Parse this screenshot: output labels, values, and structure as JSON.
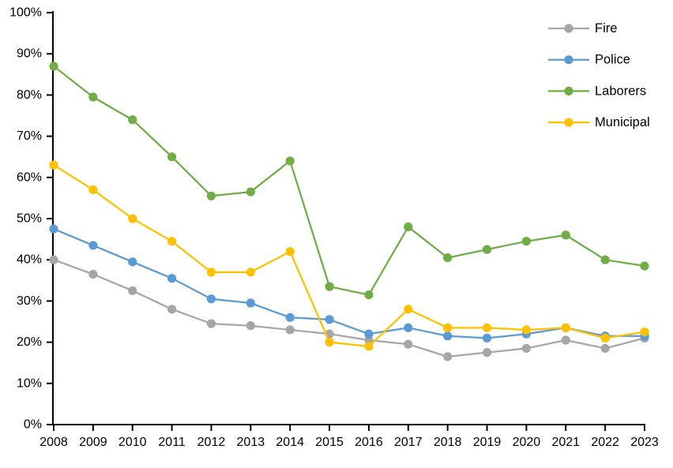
{
  "chart_data": {
    "type": "line",
    "title": "",
    "xlabel": "",
    "ylabel": "",
    "x": [
      2008,
      2009,
      2010,
      2011,
      2012,
      2013,
      2014,
      2015,
      2016,
      2017,
      2018,
      2019,
      2020,
      2021,
      2022,
      2023
    ],
    "series": [
      {
        "name": "Fire",
        "color": "#A6A6A6",
        "values": [
          40,
          36.5,
          32.5,
          28,
          24.5,
          24,
          23,
          22,
          20.5,
          19.5,
          16.5,
          17.5,
          18.5,
          20.5,
          18.5,
          21
        ]
      },
      {
        "name": "Police",
        "color": "#5B9BD5",
        "values": [
          47.5,
          43.5,
          39.5,
          35.5,
          30.5,
          29.5,
          26,
          25.5,
          22,
          23.5,
          21.5,
          21,
          22,
          23.5,
          21.5,
          21.5
        ]
      },
      {
        "name": "Laborers",
        "color": "#70AD47",
        "values": [
          87,
          79.5,
          74,
          65,
          55.5,
          56.5,
          64,
          33.5,
          31.5,
          48,
          40.5,
          42.5,
          44.5,
          46,
          40,
          38.5
        ]
      },
      {
        "name": "Municipal",
        "color": "#FFC000",
        "values": [
          63,
          57,
          50,
          44.5,
          37,
          37,
          42,
          20,
          19,
          28,
          23.5,
          23.5,
          23,
          23.5,
          21,
          22.5
        ]
      }
    ],
    "ylim": [
      0,
      100
    ],
    "ytick_step": 10,
    "ytick_suffix": "%",
    "ytick_labels": [
      "0%",
      "10%",
      "20%",
      "30%",
      "40%",
      "50%",
      "60%",
      "70%",
      "80%",
      "90%",
      "100%"
    ],
    "grid": false,
    "legend_position": "top-right",
    "legend_entries": [
      "Fire",
      "Police",
      "Laborers",
      "Municipal"
    ],
    "axis_color": "#000000",
    "background_color": "#FFFFFF"
  }
}
